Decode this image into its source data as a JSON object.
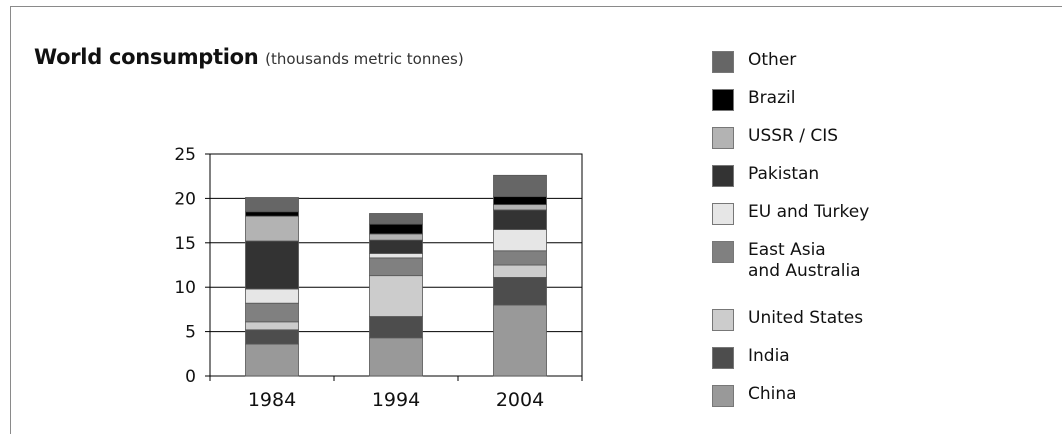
{
  "chart_data": {
    "type": "bar",
    "stacked": true,
    "title": "World consumption",
    "subtitle": "(thousands metric tonnes)",
    "categories": [
      "1984",
      "1994",
      "2004"
    ],
    "ylim": [
      0,
      25
    ],
    "yticks": [
      0,
      5,
      10,
      15,
      20,
      25
    ],
    "grid": true,
    "legend_position": "right",
    "series": [
      {
        "name": "China",
        "color": "#999999",
        "values": [
          3.6,
          4.3,
          8.0
        ]
      },
      {
        "name": "India",
        "color": "#4d4d4d",
        "values": [
          1.6,
          2.4,
          3.1
        ]
      },
      {
        "name": "United States",
        "color": "#cccccc",
        "values": [
          0.9,
          4.6,
          1.4
        ]
      },
      {
        "name": "East Asia\nand Australia",
        "color": "#808080",
        "values": [
          2.1,
          2.0,
          1.6
        ]
      },
      {
        "name": "EU and Turkey",
        "color": "#e6e6e6",
        "values": [
          1.6,
          0.5,
          2.4
        ]
      },
      {
        "name": "Pakistan",
        "color": "#333333",
        "values": [
          5.4,
          1.5,
          2.2
        ]
      },
      {
        "name": "USSR / CIS",
        "color": "#b3b3b3",
        "values": [
          2.8,
          0.7,
          0.6
        ]
      },
      {
        "name": "Brazil",
        "color": "#000000",
        "values": [
          0.5,
          1.1,
          0.9
        ]
      },
      {
        "name": "Other",
        "color": "#666666",
        "values": [
          1.6,
          1.2,
          2.4
        ]
      }
    ]
  }
}
